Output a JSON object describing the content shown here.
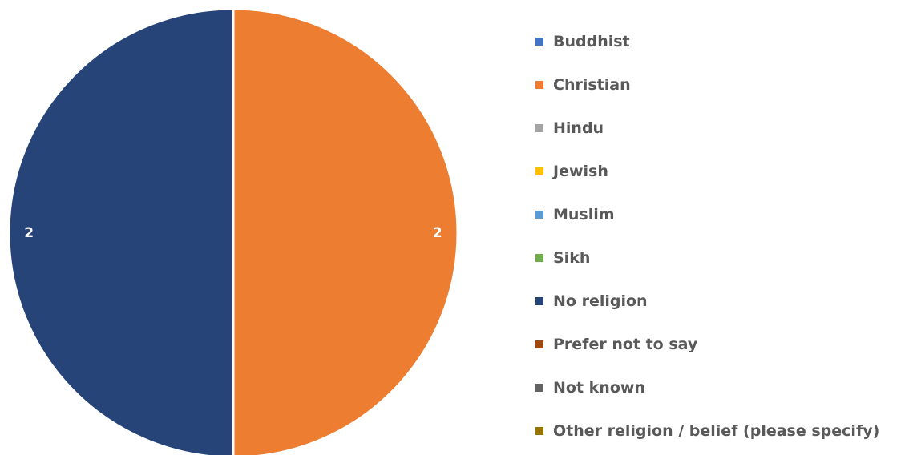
{
  "chart_data": {
    "type": "pie",
    "title": "",
    "categories": [
      "Buddhist",
      "Christian",
      "Hindu",
      "Jewish",
      "Muslim",
      "Sikh",
      "No religion",
      "Prefer not to say",
      "Not known",
      "Other religion / belief (please specify)"
    ],
    "values": [
      0,
      2,
      0,
      0,
      0,
      0,
      2,
      0,
      0,
      0
    ],
    "colors": [
      "#4472C4",
      "#ED7D31",
      "#A5A5A5",
      "#FFC000",
      "#5B9BD5",
      "#70AD47",
      "#264478",
      "#9E480E",
      "#636363",
      "#997300"
    ],
    "data_labels": true,
    "legend_position": "right",
    "slice_border_color": "#FFFFFF"
  }
}
